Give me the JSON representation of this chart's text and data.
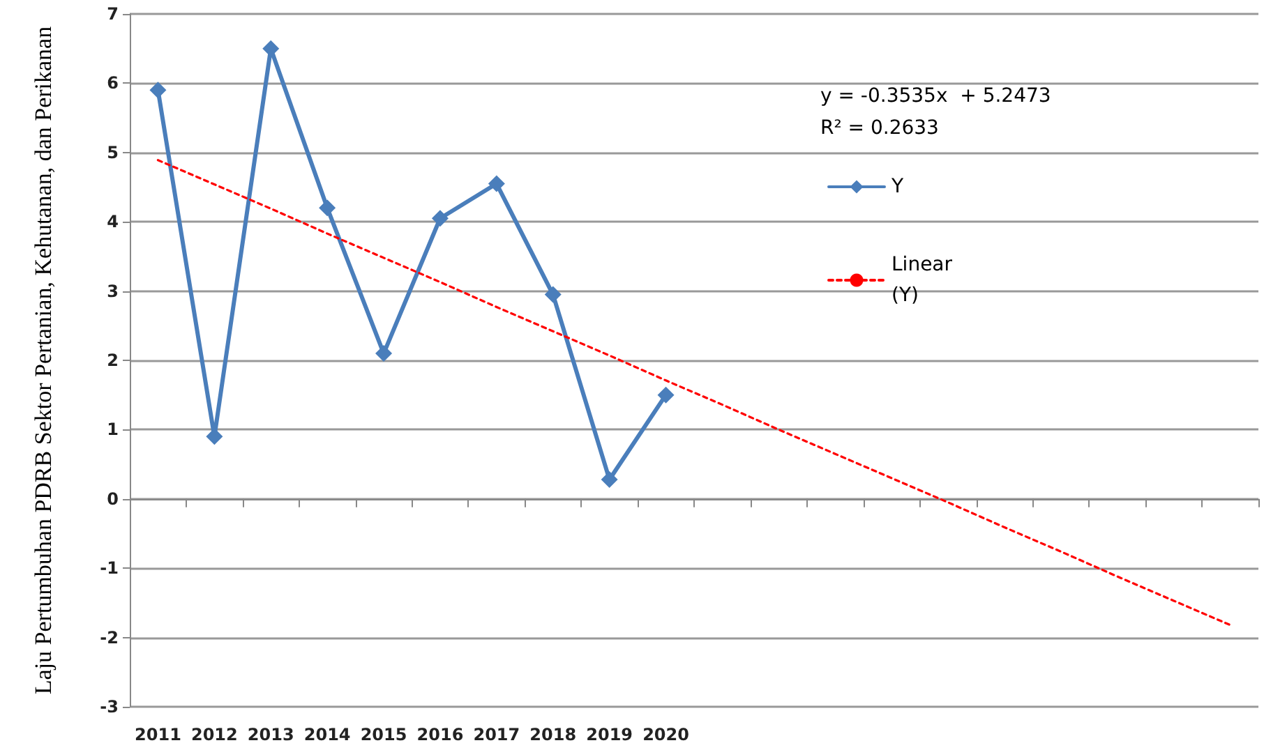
{
  "chart_data": {
    "type": "line",
    "ylabel": "Laju Pertumbuhan PDRB Sektor Pertanian, Kehutanan, dan Perikanan",
    "categories": [
      "2011",
      "2012",
      "2013",
      "2014",
      "2015",
      "2016",
      "2017",
      "2018",
      "2019",
      "2020",
      null,
      null,
      null,
      null,
      null,
      null,
      null,
      null,
      null,
      null
    ],
    "series": [
      {
        "name": "Y",
        "color": "#4a7ebb",
        "marker": "diamond",
        "line_style": "solid",
        "values": [
          5.9,
          0.9,
          6.5,
          4.2,
          2.1,
          4.05,
          4.55,
          2.95,
          0.28,
          1.5,
          null,
          null,
          null,
          null,
          null,
          null,
          null,
          null,
          null,
          null
        ]
      },
      {
        "name": "Linear (Y)",
        "type": "line",
        "color": "#ff0000",
        "marker": "none",
        "line_style": "dotted",
        "values": [
          4.89,
          4.54,
          4.19,
          3.83,
          3.48,
          3.13,
          2.77,
          2.42,
          2.07,
          1.71,
          1.36,
          1.0,
          0.65,
          0.3,
          -0.05,
          -0.41,
          -0.76,
          -1.12,
          -1.47,
          -1.82
        ]
      }
    ],
    "annotations": [
      "y = -0.3535x  + 5.2473",
      "R² = 0.2633"
    ],
    "ylim": [
      -3,
      7
    ],
    "yticks": [
      -3,
      -2,
      -1,
      0,
      1,
      2,
      3,
      4,
      5,
      6,
      7
    ],
    "grid": "y",
    "legend": "right"
  }
}
